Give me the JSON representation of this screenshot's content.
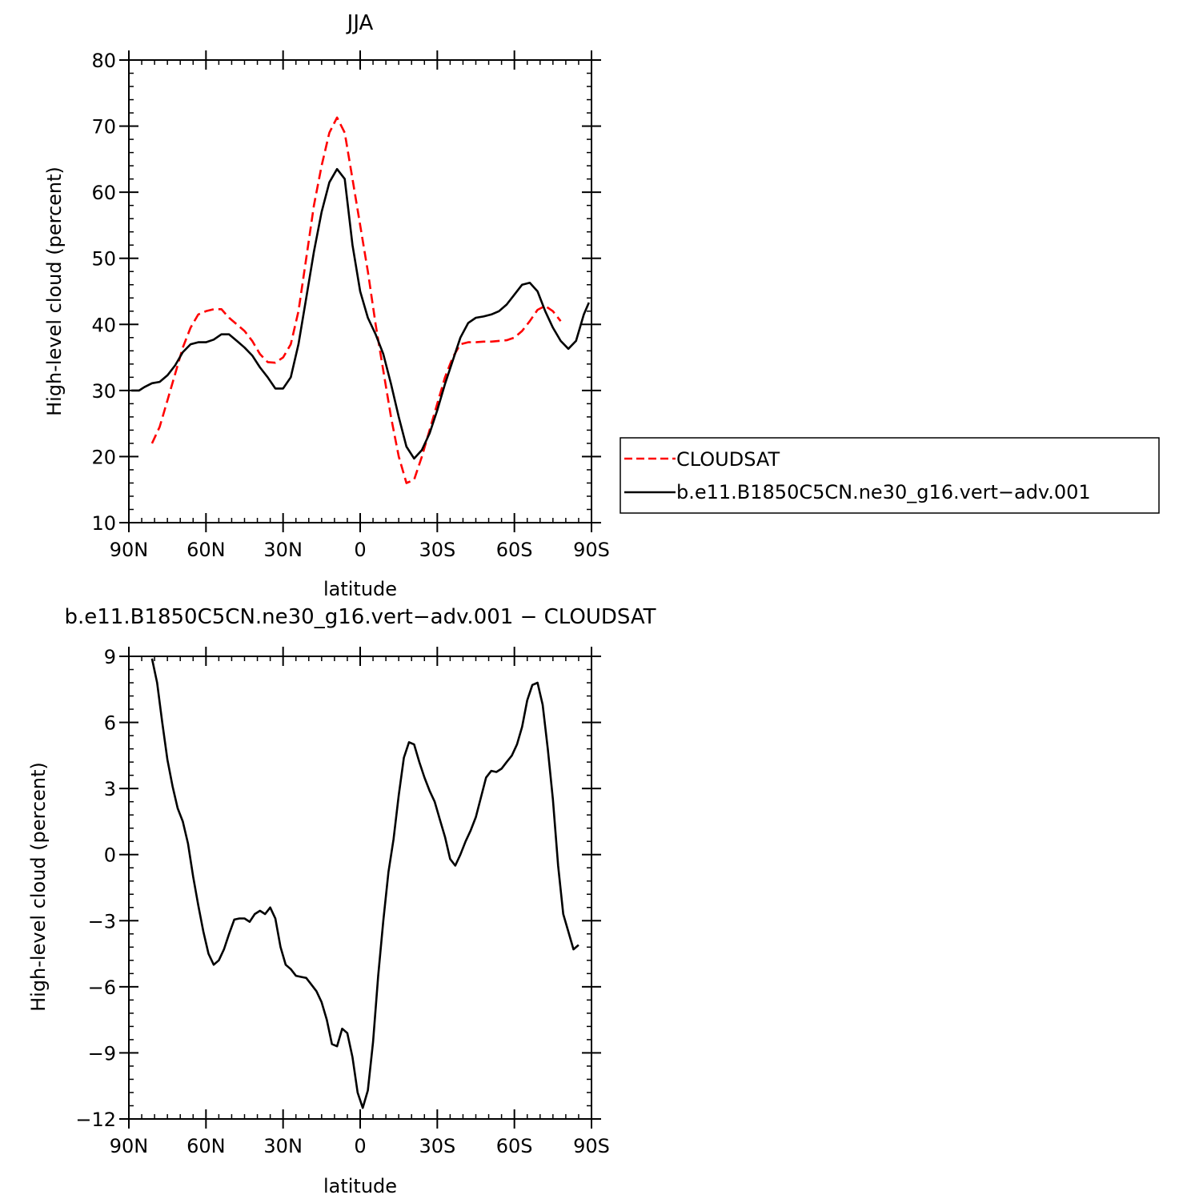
{
  "chart_data": [
    {
      "type": "line",
      "title": "JJA",
      "xlabel": "latitude",
      "ylabel": "High-level cloud (percent)",
      "xlim": [
        -90,
        90
      ],
      "ylim": [
        10,
        80
      ],
      "x_ticks": [
        {
          "value": -90,
          "label": "90N"
        },
        {
          "value": -60,
          "label": "60N"
        },
        {
          "value": -30,
          "label": "30N"
        },
        {
          "value": 0,
          "label": "0"
        },
        {
          "value": 30,
          "label": "30S"
        },
        {
          "value": 60,
          "label": "60S"
        },
        {
          "value": 90,
          "label": "90S"
        }
      ],
      "y_ticks": [
        10,
        20,
        30,
        40,
        50,
        60,
        70,
        80
      ],
      "grid": false,
      "legend_position": "right",
      "series": [
        {
          "name": "CLOUDSAT",
          "color": "#ff0000",
          "dash": "dashed",
          "points": [
            [
              -81,
              22
            ],
            [
              -78,
              24.5
            ],
            [
              -75,
              28.5
            ],
            [
              -72,
              32.5
            ],
            [
              -69,
              36.5
            ],
            [
              -66,
              39.5
            ],
            [
              -63,
              41.5
            ],
            [
              -60,
              42
            ],
            [
              -57,
              42.3
            ],
            [
              -54,
              42.3
            ],
            [
              -51,
              41
            ],
            [
              -48,
              40
            ],
            [
              -45,
              39
            ],
            [
              -42,
              37.5
            ],
            [
              -39,
              35.5
            ],
            [
              -36,
              34.3
            ],
            [
              -33,
              34.2
            ],
            [
              -30,
              35
            ],
            [
              -27,
              37
            ],
            [
              -24,
              42
            ],
            [
              -21,
              50
            ],
            [
              -18,
              58
            ],
            [
              -15,
              64
            ],
            [
              -12,
              69
            ],
            [
              -9,
              71.3
            ],
            [
              -6,
              69
            ],
            [
              -3,
              62
            ],
            [
              0,
              55
            ],
            [
              3,
              48
            ],
            [
              6,
              40
            ],
            [
              9,
              33
            ],
            [
              12,
              26
            ],
            [
              15,
              20
            ],
            [
              18,
              16
            ],
            [
              21,
              16.5
            ],
            [
              24,
              20
            ],
            [
              27,
              24
            ],
            [
              30,
              28
            ],
            [
              33,
              32
            ],
            [
              36,
              35
            ],
            [
              39,
              37
            ],
            [
              42,
              37.3
            ],
            [
              45,
              37.3
            ],
            [
              48,
              37.4
            ],
            [
              51,
              37.4
            ],
            [
              54,
              37.5
            ],
            [
              57,
              37.6
            ],
            [
              60,
              38
            ],
            [
              63,
              39
            ],
            [
              66,
              40.5
            ],
            [
              69,
              42.2
            ],
            [
              72,
              42.8
            ],
            [
              75,
              42
            ],
            [
              78,
              40.5
            ]
          ]
        },
        {
          "name": "b.e11.B1850C5CN.ne30_g16.vert−adv.001",
          "color": "#000000",
          "dash": "solid",
          "points": [
            [
              -89,
              30
            ],
            [
              -86,
              30
            ],
            [
              -84,
              30.5
            ],
            [
              -81,
              31.1
            ],
            [
              -78,
              31.3
            ],
            [
              -75,
              32.3
            ],
            [
              -72,
              33.8
            ],
            [
              -69,
              35.8
            ],
            [
              -66,
              37
            ],
            [
              -63,
              37.3
            ],
            [
              -60,
              37.3
            ],
            [
              -57,
              37.7
            ],
            [
              -54,
              38.5
            ],
            [
              -51,
              38.5
            ],
            [
              -48,
              37.5
            ],
            [
              -45,
              36.5
            ],
            [
              -42,
              35.3
            ],
            [
              -39,
              33.5
            ],
            [
              -36,
              32
            ],
            [
              -33,
              30.3
            ],
            [
              -30,
              30.3
            ],
            [
              -27,
              32
            ],
            [
              -24,
              37
            ],
            [
              -21,
              44
            ],
            [
              -18,
              51
            ],
            [
              -15,
              57
            ],
            [
              -12,
              61.5
            ],
            [
              -9,
              63.5
            ],
            [
              -6,
              62
            ],
            [
              -3,
              52
            ],
            [
              0,
              45
            ],
            [
              3,
              41
            ],
            [
              6,
              38.5
            ],
            [
              9,
              35.5
            ],
            [
              12,
              31
            ],
            [
              15,
              26
            ],
            [
              18,
              21.5
            ],
            [
              21,
              19.7
            ],
            [
              24,
              21
            ],
            [
              27,
              23.5
            ],
            [
              30,
              27
            ],
            [
              33,
              31
            ],
            [
              36,
              34.5
            ],
            [
              39,
              38
            ],
            [
              42,
              40.2
            ],
            [
              45,
              41
            ],
            [
              48,
              41.2
            ],
            [
              51,
              41.5
            ],
            [
              54,
              42
            ],
            [
              57,
              43
            ],
            [
              60,
              44.5
            ],
            [
              63,
              46
            ],
            [
              66,
              46.3
            ],
            [
              69,
              45
            ],
            [
              72,
              42
            ],
            [
              75,
              39.5
            ],
            [
              78,
              37.5
            ],
            [
              81,
              36.3
            ],
            [
              84,
              37.5
            ],
            [
              87,
              41.5
            ],
            [
              89,
              43.3
            ]
          ]
        }
      ]
    },
    {
      "type": "line",
      "title": "b.e11.B1850C5CN.ne30_g16.vert−adv.001 − CLOUDSAT",
      "xlabel": "latitude",
      "ylabel": "High-level cloud (percent)",
      "xlim": [
        -90,
        90
      ],
      "ylim": [
        -12,
        9
      ],
      "x_ticks": [
        {
          "value": -90,
          "label": "90N"
        },
        {
          "value": -60,
          "label": "60N"
        },
        {
          "value": -30,
          "label": "30N"
        },
        {
          "value": 0,
          "label": "0"
        },
        {
          "value": 30,
          "label": "30S"
        },
        {
          "value": 60,
          "label": "60S"
        },
        {
          "value": 90,
          "label": "90S"
        }
      ],
      "y_ticks": [
        {
          "value": 9,
          "label": "9"
        },
        {
          "value": 6,
          "label": "6"
        },
        {
          "value": 3,
          "label": "3"
        },
        {
          "value": 0,
          "label": "0"
        },
        {
          "value": -3,
          "label": "−3"
        },
        {
          "value": -6,
          "label": "−6"
        },
        {
          "value": -9,
          "label": "−9"
        },
        {
          "value": -12,
          "label": "−12"
        }
      ],
      "grid": false,
      "series": [
        {
          "color": "#000000",
          "dash": "solid",
          "points": [
            [
              -81,
              8.9
            ],
            [
              -79,
              7.8
            ],
            [
              -77,
              6
            ],
            [
              -75,
              4.3
            ],
            [
              -73,
              3.1
            ],
            [
              -71,
              2.1
            ],
            [
              -69,
              1.5
            ],
            [
              -67,
              0.5
            ],
            [
              -65,
              -1
            ],
            [
              -63,
              -2.3
            ],
            [
              -61,
              -3.5
            ],
            [
              -59,
              -4.5
            ],
            [
              -57,
              -5
            ],
            [
              -55,
              -4.8
            ],
            [
              -53,
              -4.3
            ],
            [
              -51,
              -3.6
            ],
            [
              -49,
              -2.95
            ],
            [
              -47,
              -2.9
            ],
            [
              -45,
              -2.9
            ],
            [
              -43,
              -3.05
            ],
            [
              -41,
              -2.7
            ],
            [
              -39,
              -2.55
            ],
            [
              -37,
              -2.7
            ],
            [
              -35,
              -2.4
            ],
            [
              -33,
              -2.9
            ],
            [
              -31,
              -4.2
            ],
            [
              -29,
              -5
            ],
            [
              -27,
              -5.2
            ],
            [
              -25,
              -5.5
            ],
            [
              -23,
              -5.55
            ],
            [
              -21,
              -5.6
            ],
            [
              -19,
              -5.9
            ],
            [
              -17,
              -6.2
            ],
            [
              -15,
              -6.7
            ],
            [
              -13,
              -7.5
            ],
            [
              -11,
              -8.6
            ],
            [
              -9,
              -8.7
            ],
            [
              -7,
              -7.9
            ],
            [
              -5,
              -8.1
            ],
            [
              -3,
              -9.2
            ],
            [
              -1,
              -10.8
            ],
            [
              1,
              -11.5
            ],
            [
              3,
              -10.7
            ],
            [
              5,
              -8.5
            ],
            [
              7,
              -5.5
            ],
            [
              9,
              -3
            ],
            [
              11,
              -0.8
            ],
            [
              13,
              0.7
            ],
            [
              15,
              2.7
            ],
            [
              17,
              4.4
            ],
            [
              19,
              5.1
            ],
            [
              21,
              5
            ],
            [
              23,
              4.2
            ],
            [
              25,
              3.5
            ],
            [
              27,
              2.9
            ],
            [
              29,
              2.4
            ],
            [
              31,
              1.6
            ],
            [
              33,
              0.8
            ],
            [
              35,
              -0.2
            ],
            [
              37,
              -0.5
            ],
            [
              39,
              0
            ],
            [
              41,
              0.6
            ],
            [
              43,
              1.1
            ],
            [
              45,
              1.7
            ],
            [
              47,
              2.6
            ],
            [
              49,
              3.5
            ],
            [
              51,
              3.8
            ],
            [
              53,
              3.75
            ],
            [
              55,
              3.9
            ],
            [
              57,
              4.2
            ],
            [
              59,
              4.5
            ],
            [
              61,
              5
            ],
            [
              63,
              5.8
            ],
            [
              65,
              7
            ],
            [
              67,
              7.7
            ],
            [
              69,
              7.8
            ],
            [
              71,
              6.8
            ],
            [
              73,
              4.8
            ],
            [
              75,
              2.5
            ],
            [
              77,
              -0.5
            ],
            [
              79,
              -2.7
            ],
            [
              81,
              -3.5
            ],
            [
              83,
              -4.3
            ],
            [
              85,
              -4.1
            ]
          ]
        }
      ]
    }
  ]
}
